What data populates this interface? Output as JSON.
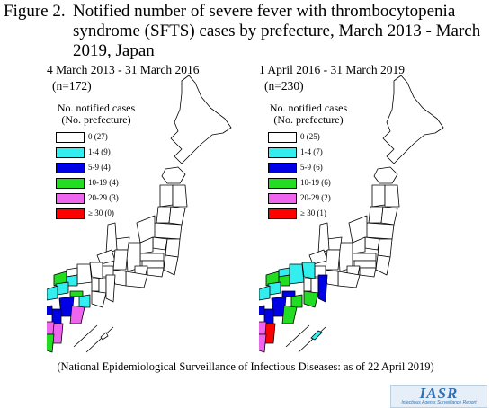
{
  "title": {
    "label": "Figure 2.",
    "text": "Notified number of severe fever with thrombocytopenia syndrome (SFTS) cases by prefecture, March 2013 - March 2019, Japan"
  },
  "colors": {
    "c0": "#ffffff",
    "c1": "#33eeee",
    "c2": "#0000e6",
    "c3": "#22dd22",
    "c4": "#ee66ee",
    "c5": "#ff0000"
  },
  "legend_title": "No. notified cases (No. prefecture)",
  "panels": [
    {
      "period": "4 March 2013 - 31 March 2016",
      "n": "(n=172)",
      "legend": [
        {
          "label": "0 (27)",
          "color": "#ffffff"
        },
        {
          "label": "1-4 (9)",
          "color": "#33eeee"
        },
        {
          "label": "5-9 (4)",
          "color": "#0000e6"
        },
        {
          "label": "10-19 (4)",
          "color": "#22dd22"
        },
        {
          "label": "20-29 (3)",
          "color": "#ee66ee"
        },
        {
          "label": "≥ 30 (0)",
          "color": "#ff0000"
        }
      ]
    },
    {
      "period": "1 April 2016 - 31 March 2019",
      "n": "(n=230)",
      "legend": [
        {
          "label": "0 (25)",
          "color": "#ffffff"
        },
        {
          "label": "1-4 (7)",
          "color": "#33eeee"
        },
        {
          "label": "5-9 (6)",
          "color": "#0000e6"
        },
        {
          "label": "10-19 (6)",
          "color": "#22dd22"
        },
        {
          "label": "20-29 (2)",
          "color": "#ee66ee"
        },
        {
          "label": "≥ 30 (1)",
          "color": "#ff0000"
        }
      ]
    }
  ],
  "source": "(National Epidemiological Surveillance of Infectious Diseases: as of 22 April 2019)",
  "logo": {
    "text": "IASR",
    "subtext": "Infectious Agents Surveillance Report"
  }
}
